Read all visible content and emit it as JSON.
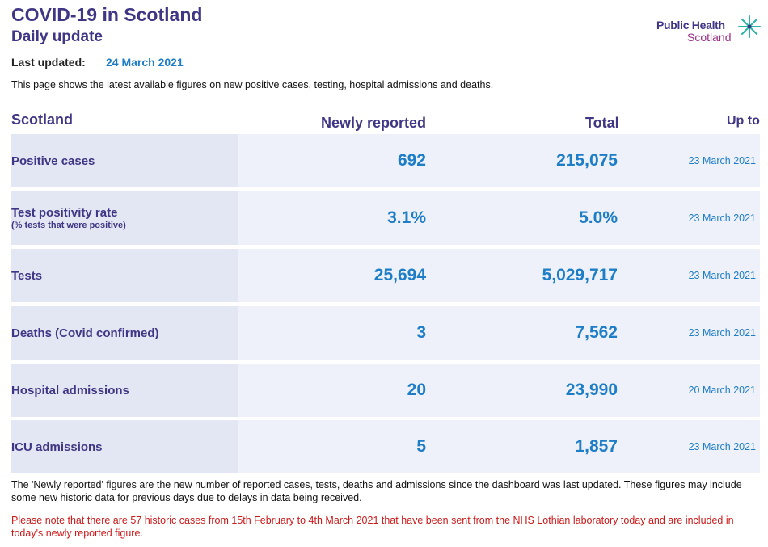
{
  "header": {
    "title": "COVID-19 in Scotland",
    "subtitle": "Daily update",
    "last_updated_label": "Last updated:",
    "last_updated_value": "24 March 2021",
    "intro": "This page shows the latest available figures on new positive cases, testing, hospital admissions and deaths."
  },
  "logo": {
    "line1": "Public Health",
    "line2": "Scotland",
    "colors": {
      "primary": "#3f3685",
      "secondary": "#9b2f8b",
      "star": "#2bb5a6"
    }
  },
  "table": {
    "headers": {
      "region": "Scotland",
      "newly_reported": "Newly reported",
      "total": "Total",
      "up_to": "Up to"
    },
    "rows": [
      {
        "label": "Positive cases",
        "sublabel": "",
        "newly_reported": "692",
        "total": "215,075",
        "up_to": "23 March 2021"
      },
      {
        "label": "Test positivity rate",
        "sublabel": "(% tests that were positive)",
        "newly_reported": "3.1%",
        "total": "5.0%",
        "up_to": "23 March 2021"
      },
      {
        "label": "Tests",
        "sublabel": "",
        "newly_reported": "25,694",
        "total": "5,029,717",
        "up_to": "23 March 2021"
      },
      {
        "label": "Deaths (Covid confirmed)",
        "sublabel": "",
        "newly_reported": "3",
        "total": "7,562",
        "up_to": "23 March 2021"
      },
      {
        "label": "Hospital admissions",
        "sublabel": "",
        "newly_reported": "20",
        "total": "23,990",
        "up_to": "20 March 2021"
      },
      {
        "label": "ICU admissions",
        "sublabel": "",
        "newly_reported": "5",
        "total": "1,857",
        "up_to": "23 March 2021"
      }
    ]
  },
  "notes": {
    "footnote": "The 'Newly reported' figures are the new number of reported cases, tests, deaths and admissions since the dashboard was last updated. These figures may include some new historic data for previous days due to delays in data being received.",
    "warning": "Please note that there are 57 historic cases from 15th February to 4th March 2021 that have been sent from the NHS Lothian laboratory today and are included in today's newly reported figure."
  },
  "colors": {
    "title": "#3f3685",
    "value": "#1e7dc7",
    "row_bg": "#eef1f9",
    "label_bg": "#e3e7f3",
    "warning": "#cc1a1a"
  }
}
